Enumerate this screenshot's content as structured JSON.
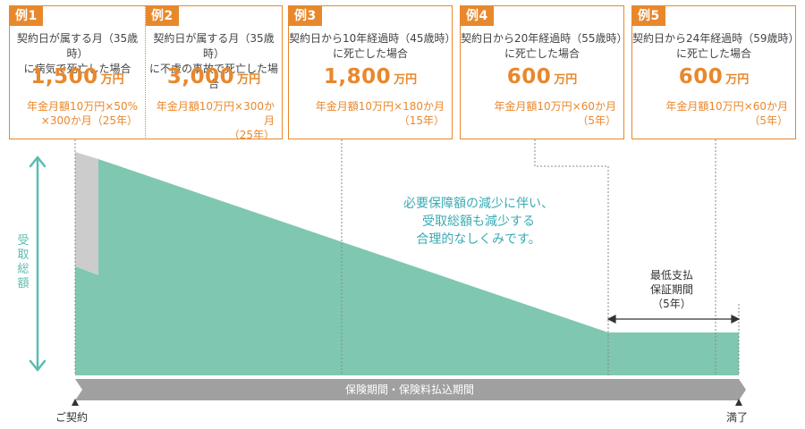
{
  "examples": [
    {
      "tag": "例1",
      "cond1": "契約日が属する月（35歳時）",
      "cond2": "に病気で死亡した場合",
      "amount": "1,500",
      "unit": "万円",
      "formula1": "年金月額10万円×50%",
      "formula2": "×300か月（25年）"
    },
    {
      "tag": "例2",
      "cond1": "契約日が属する月（35歳時）",
      "cond2": "に不慮の事故で死亡した場合",
      "amount": "3,000",
      "unit": "万円",
      "formula1": "年金月額10万円×300か月",
      "formula2": "（25年）"
    },
    {
      "tag": "例3",
      "cond1": "契約日から10年経過時（45歳時）",
      "cond2": "に死亡した場合",
      "amount": "1,800",
      "unit": "万円",
      "formula1": "年金月額10万円×180か月",
      "formula2": "（15年）"
    },
    {
      "tag": "例4",
      "cond1": "契約日から20年経過時（55歳時）",
      "cond2": "に死亡した場合",
      "amount": "600",
      "unit": "万円",
      "formula1": "年金月額10万円×60か月",
      "formula2": "（5年）"
    },
    {
      "tag": "例5",
      "cond1": "契約日から24年経過時（59歳時）",
      "cond2": "に死亡した場合",
      "amount": "600",
      "unit": "万円",
      "formula1": "年金月額10万円×60か月",
      "formula2": "（5年）"
    }
  ],
  "vertical_label": "受取総額",
  "message": [
    "必要保障額の減少に伴い、",
    "受取総額も減少する",
    "合理的なしくみです。"
  ],
  "guarantee_label": [
    "最低支払",
    "保証期間",
    "（5年）"
  ],
  "period_bar_label": "保険期間・保険料払込期間",
  "start_label": "ご契約",
  "end_label": "満了",
  "colors": {
    "accent": "#e8882c",
    "area": "#7fc7b0",
    "extra_grey": "#cccccc",
    "arrow": "#5bbcb2",
    "bar": "#a0a0a0",
    "message": "#3aabb3"
  }
}
